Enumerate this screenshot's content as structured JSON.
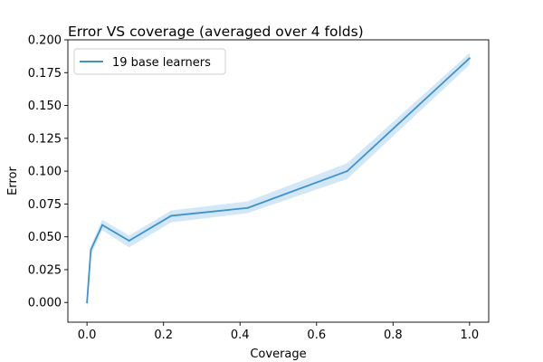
{
  "chart_data": {
    "type": "line",
    "title": "Error VS coverage (averaged over 4 folds)",
    "xlabel": "Coverage",
    "ylabel": "Error",
    "xlim": [
      -0.05,
      1.05
    ],
    "ylim": [
      -0.015,
      0.2
    ],
    "xticks": [
      0.0,
      0.2,
      0.4,
      0.6,
      0.8,
      1.0
    ],
    "xtick_labels": [
      "0.0",
      "0.2",
      "0.4",
      "0.6",
      "0.8",
      "1.0"
    ],
    "yticks": [
      0.0,
      0.025,
      0.05,
      0.075,
      0.1,
      0.125,
      0.15,
      0.175,
      0.2
    ],
    "ytick_labels": [
      "0.000",
      "0.025",
      "0.050",
      "0.075",
      "0.100",
      "0.125",
      "0.150",
      "0.175",
      "0.200"
    ],
    "grid": false,
    "legend_position": "top-left",
    "series": [
      {
        "name": "19 base learners",
        "color": "#3a94d3",
        "band_color": "#a7d0ee",
        "x": [
          0.0,
          0.01,
          0.04,
          0.11,
          0.22,
          0.42,
          0.68,
          1.0
        ],
        "y": [
          0.0,
          0.04,
          0.059,
          0.047,
          0.066,
          0.072,
          0.1,
          0.186
        ],
        "lower": [
          -0.005,
          0.036,
          0.055,
          0.042,
          0.061,
          0.068,
          0.094,
          0.181
        ],
        "upper": [
          0.003,
          0.043,
          0.063,
          0.051,
          0.07,
          0.077,
          0.106,
          0.19
        ]
      }
    ]
  }
}
